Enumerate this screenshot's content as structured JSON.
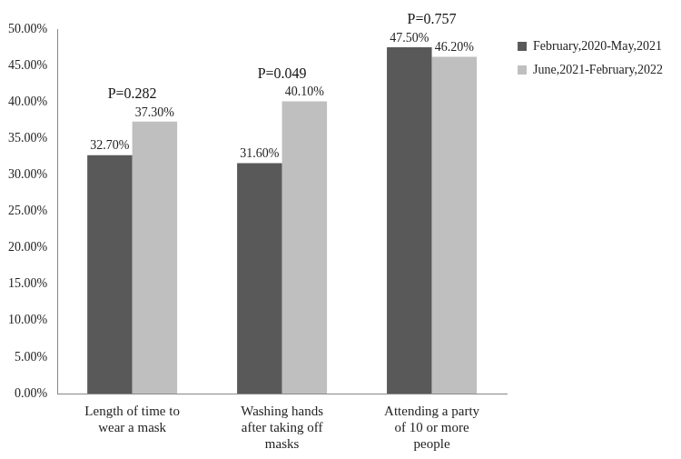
{
  "chart_data": {
    "type": "bar",
    "categories": [
      "Length of time to wear a mask",
      "Washing hands after taking off masks",
      "Attending a party of 10 or more people"
    ],
    "series": [
      {
        "name": "February,2020-May,2021",
        "color": "#595959",
        "values": [
          32.7,
          31.6,
          47.5
        ],
        "value_labels": [
          "32.70%",
          "31.60%",
          "47.50%"
        ]
      },
      {
        "name": "June,2021-February,2022",
        "color": "#bfbfbf",
        "values": [
          37.3,
          40.1,
          46.2
        ],
        "value_labels": [
          "37.30%",
          "40.10%",
          "46.20%"
        ]
      }
    ],
    "annotations": [
      "P=0.282",
      "P=0.049",
      "P=0.757"
    ],
    "ylim": [
      0,
      50
    ],
    "yticks": [
      {
        "value": 0,
        "label": "0.00%"
      },
      {
        "value": 5,
        "label": "5.00%"
      },
      {
        "value": 10,
        "label": "10.00%"
      },
      {
        "value": 15,
        "label": "15.00%"
      },
      {
        "value": 20,
        "label": "20.00%"
      },
      {
        "value": 25,
        "label": "25.00%"
      },
      {
        "value": 30,
        "label": "30.00%"
      },
      {
        "value": 35,
        "label": "35.00%"
      },
      {
        "value": 40,
        "label": "40.00%"
      },
      {
        "value": 45,
        "label": "45.00%"
      },
      {
        "value": 50,
        "label": "50.00%"
      }
    ],
    "grid": false,
    "legend": "right",
    "data_labels": true
  }
}
